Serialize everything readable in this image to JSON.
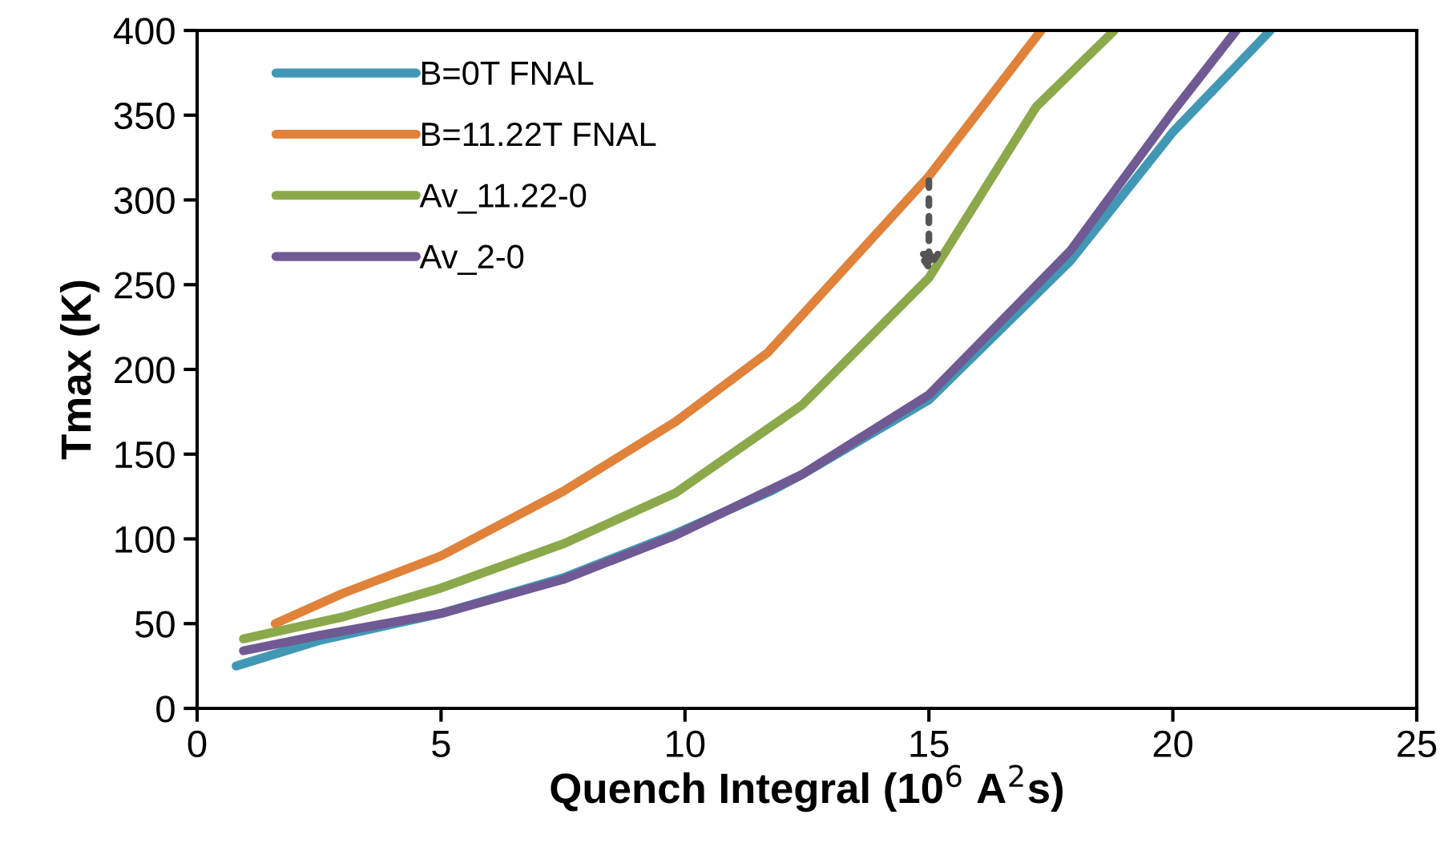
{
  "chart_data": {
    "type": "line",
    "xlabel": "Quench Integral (10$^{6}$ A$^{2}$s)",
    "ylabel": "Tmax (K)",
    "xlim": [
      0,
      25
    ],
    "xticks": [
      0,
      5,
      10,
      15,
      20,
      25
    ],
    "ylim": [
      0,
      400
    ],
    "yticks": [
      0,
      50,
      100,
      150,
      200,
      250,
      300,
      350,
      400
    ],
    "grid": false,
    "legend": "top left",
    "marker": "none",
    "line_style": "solid",
    "series": [
      {
        "name": "B=0T FNAL",
        "color": "#4198b5",
        "x": [
          0.8,
          2.5,
          5,
          7.5,
          9.8,
          11.75,
          12.4,
          15,
          17.9,
          20,
          22.0
        ],
        "values": [
          25,
          40,
          56,
          77,
          103,
          128,
          138,
          182,
          264,
          340,
          400
        ]
      },
      {
        "name": "B=11.22T FNAL",
        "color": "#e0823a",
        "x": [
          1.6,
          3,
          5,
          7.5,
          9.8,
          11.7,
          12.4,
          15,
          17.3
        ],
        "values": [
          50,
          68,
          90,
          128,
          169,
          210,
          232,
          314,
          400
        ]
      },
      {
        "name": "Av_11.22-0",
        "color": "#8ba94a",
        "x": [
          0.95,
          3,
          5,
          7.5,
          9.8,
          12.4,
          15,
          17.2,
          18.8
        ],
        "values": [
          41,
          54,
          71,
          97,
          127,
          179,
          254,
          355,
          400
        ]
      },
      {
        "name": "Av_2-0",
        "color": "#6f5a94",
        "x": [
          0.95,
          2.5,
          5,
          7.5,
          9.8,
          12.4,
          15,
          17.9,
          20,
          21.3
        ],
        "values": [
          34,
          43,
          56,
          76,
          102,
          138,
          185,
          270,
          352,
          400
        ]
      }
    ]
  }
}
